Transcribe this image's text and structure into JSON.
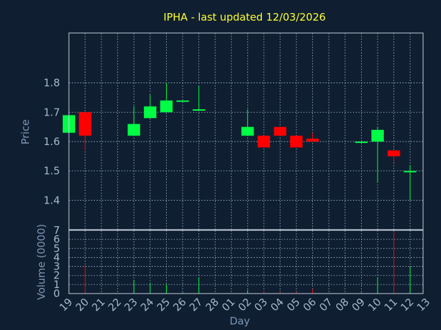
{
  "chart_data": {
    "type": "candlestick",
    "title": "IPHA - last updated 12/03/2026",
    "xlabel": "Day",
    "ylabel": "Price",
    "volume_label": "Volume (0000)",
    "grid": true,
    "colors": {
      "background": "#0f1f31",
      "up": "#00ff44",
      "down": "#ff0000",
      "frame": "#c8d2e0",
      "grid": "#8aa0bc",
      "title": "#ffff33"
    },
    "price_axis": {
      "ylim": [
        1.3,
        1.97
      ],
      "ticks": [
        "1.4",
        "1.5",
        "1.6",
        "1.7",
        "1.8"
      ]
    },
    "volume_axis": {
      "ylim": [
        0,
        7
      ],
      "ticks": [
        "0",
        "1",
        "2",
        "3",
        "4",
        "5",
        "6",
        "7"
      ]
    },
    "x_ticks": [
      "19",
      "20",
      "21",
      "22",
      "23",
      "24",
      "25",
      "26",
      "27",
      "28",
      "01",
      "02",
      "03",
      "04",
      "05",
      "06",
      "07",
      "08",
      "09",
      "10",
      "11",
      "12",
      "13"
    ],
    "candles": [
      {
        "day": "19",
        "open": 1.63,
        "high": 1.69,
        "low": 1.63,
        "close": 1.69,
        "volume": 0
      },
      {
        "day": "20",
        "open": 1.7,
        "high": 1.7,
        "low": 1.57,
        "close": 1.62,
        "volume": 3.1
      },
      {
        "day": "23",
        "open": 1.62,
        "high": 1.72,
        "low": 1.62,
        "close": 1.66,
        "volume": 1.5
      },
      {
        "day": "24",
        "open": 1.68,
        "high": 1.76,
        "low": 1.68,
        "close": 1.72,
        "volume": 1.2
      },
      {
        "day": "25",
        "open": 1.7,
        "high": 1.8,
        "low": 1.7,
        "close": 1.74,
        "volume": 1.0
      },
      {
        "day": "26",
        "open": 1.74,
        "high": 1.74,
        "low": 1.74,
        "close": 1.74,
        "volume": 0.1
      },
      {
        "day": "27",
        "open": 1.71,
        "high": 1.79,
        "low": 1.71,
        "close": 1.71,
        "volume": 1.8
      },
      {
        "day": "02",
        "open": 1.62,
        "high": 1.71,
        "low": 1.62,
        "close": 1.65,
        "volume": 0.4
      },
      {
        "day": "03",
        "open": 1.62,
        "high": 1.62,
        "low": 1.58,
        "close": 1.58,
        "volume": 0.3
      },
      {
        "day": "04",
        "open": 1.65,
        "high": 1.65,
        "low": 1.62,
        "close": 1.62,
        "volume": 0.2
      },
      {
        "day": "05",
        "open": 1.62,
        "high": 1.62,
        "low": 1.58,
        "close": 1.58,
        "volume": 0.2
      },
      {
        "day": "06",
        "open": 1.61,
        "high": 1.63,
        "low": 1.6,
        "close": 1.6,
        "volume": 0.5
      },
      {
        "day": "09",
        "open": 1.6,
        "high": 1.6,
        "low": 1.6,
        "close": 1.6,
        "volume": 0.1
      },
      {
        "day": "10",
        "open": 1.6,
        "high": 1.65,
        "low": 1.46,
        "close": 1.64,
        "volume": 1.8
      },
      {
        "day": "11",
        "open": 1.57,
        "high": 1.57,
        "low": 1.53,
        "close": 1.55,
        "volume": 6.8
      },
      {
        "day": "12",
        "open": 1.5,
        "high": 1.52,
        "low": 1.4,
        "close": 1.5,
        "volume": 3.0
      }
    ]
  }
}
